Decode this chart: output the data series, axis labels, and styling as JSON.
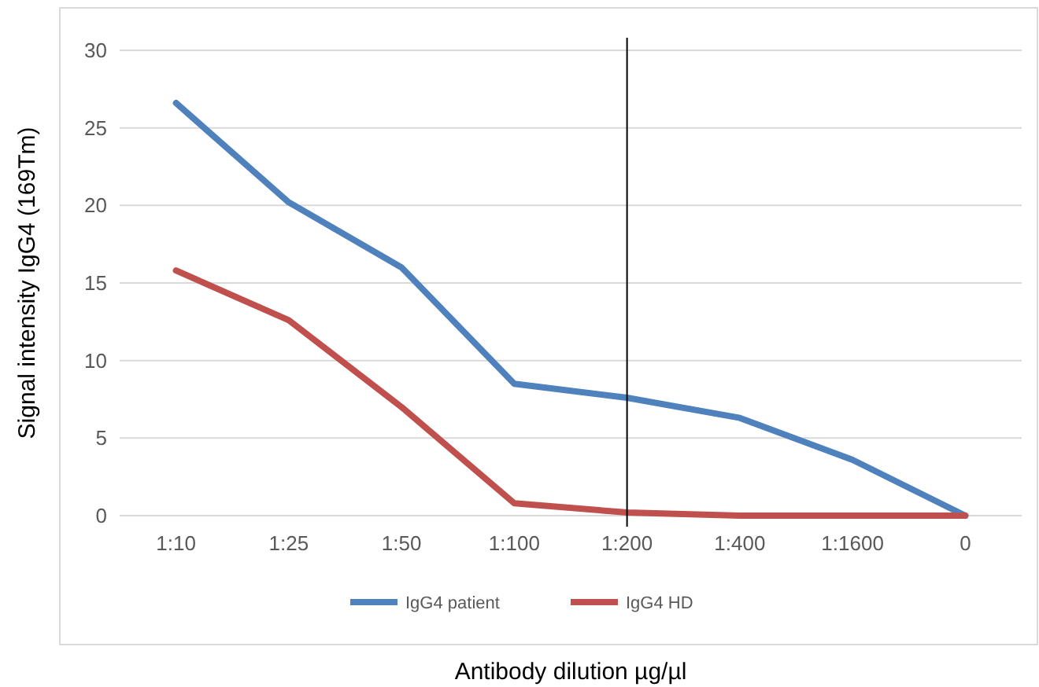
{
  "chart_data": {
    "type": "line",
    "xlabel": "Antibody dilution µg/µl",
    "ylabel": "Signal intensity IgG4 (169Tm)",
    "categories": [
      "1:10",
      "1:25",
      "1:50",
      "1:100",
      "1:200",
      "1:400",
      "1:1600",
      "0"
    ],
    "series": [
      {
        "name": "IgG4 patient",
        "color": "#4f81bd",
        "values": [
          26.6,
          20.2,
          16.0,
          8.5,
          7.6,
          6.3,
          3.6,
          0
        ]
      },
      {
        "name": "IgG4 HD",
        "color": "#c0504d",
        "values": [
          15.8,
          12.6,
          7.0,
          0.8,
          0.2,
          0,
          0,
          0
        ]
      }
    ],
    "ylim": [
      0,
      30
    ],
    "yticks": [
      0,
      5,
      10,
      15,
      20,
      25,
      30
    ],
    "grid": "y",
    "legend": "bottom",
    "marker": "none",
    "line_style": "solid",
    "ref_lines": [
      {
        "axis": "x",
        "value": "1:200",
        "color": "#000000"
      }
    ]
  }
}
